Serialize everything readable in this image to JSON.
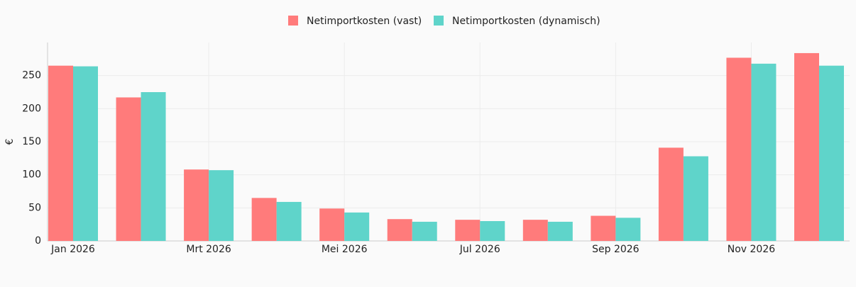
{
  "chart_data": {
    "type": "bar",
    "y_label": "€",
    "categories": [
      "Jan 2026",
      null,
      "Mrt 2026",
      null,
      "Mei 2026",
      null,
      "Jul 2026",
      null,
      "Sep 2026",
      null,
      "Nov 2026",
      null
    ],
    "series": [
      {
        "name": "Netimportkosten (vast)",
        "color": "#ff7b7b",
        "values": [
          265,
          217,
          108,
          65,
          49,
          33,
          32,
          32,
          38,
          141,
          277,
          284
        ]
      },
      {
        "name": "Netimportkosten (dynamisch)",
        "color": "#5fd4ca",
        "values": [
          264,
          225,
          107,
          59,
          43,
          29,
          30,
          29,
          35,
          128,
          268,
          265
        ]
      }
    ],
    "ylim": [
      0,
      300
    ],
    "yticks": [
      0,
      50,
      100,
      150,
      200,
      250
    ],
    "grid": true,
    "legend": "top"
  }
}
